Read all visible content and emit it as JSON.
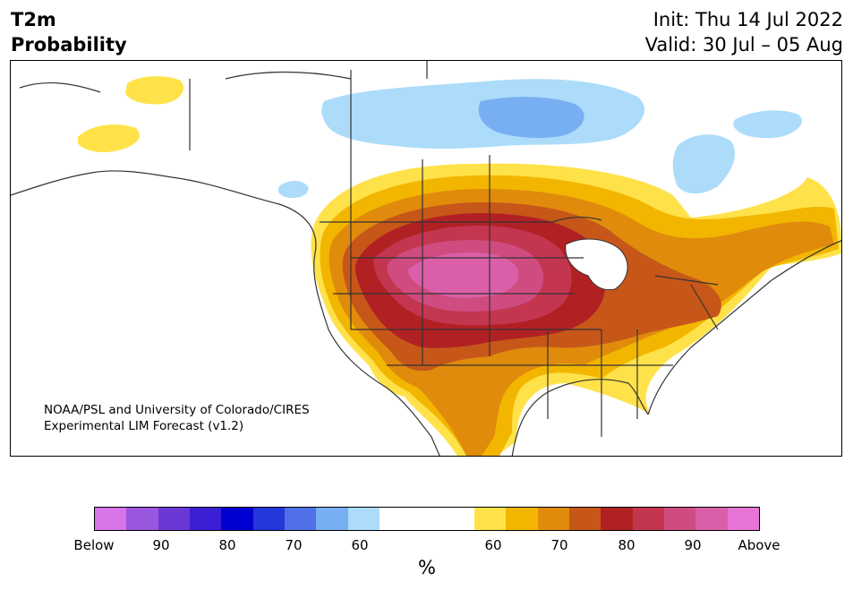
{
  "header": {
    "title_line1": "T2m",
    "title_line2": "Probability",
    "init": "Init: Thu 14 Jul 2022",
    "valid": "Valid: 30 Jul – 05 Aug"
  },
  "credit": {
    "line1": "NOAA/PSL and University of Colorado/CIRES",
    "line2": "Experimental LIM Forecast (v1.2)"
  },
  "colorbar": {
    "below_colors": [
      "#d674e8",
      "#9b56df",
      "#6b38d6",
      "#3b1fd4",
      "#0000d0",
      "#2437da",
      "#5070e8",
      "#78aff2",
      "#acdcfa"
    ],
    "above_colors": [
      "#ffe24a",
      "#f2b600",
      "#e08b0c",
      "#c65719",
      "#b12124",
      "#c43550",
      "#cf4c80",
      "#da5fa8",
      "#e775d6"
    ],
    "neutral_color": "#ffffff",
    "tick_labels": [
      "Below",
      "90",
      "80",
      "70",
      "60",
      "60",
      "70",
      "80",
      "90",
      "Above"
    ],
    "unit": "%"
  },
  "map": {
    "region": "North America",
    "land_color": "#ffffff",
    "outline_color": "#333333"
  }
}
